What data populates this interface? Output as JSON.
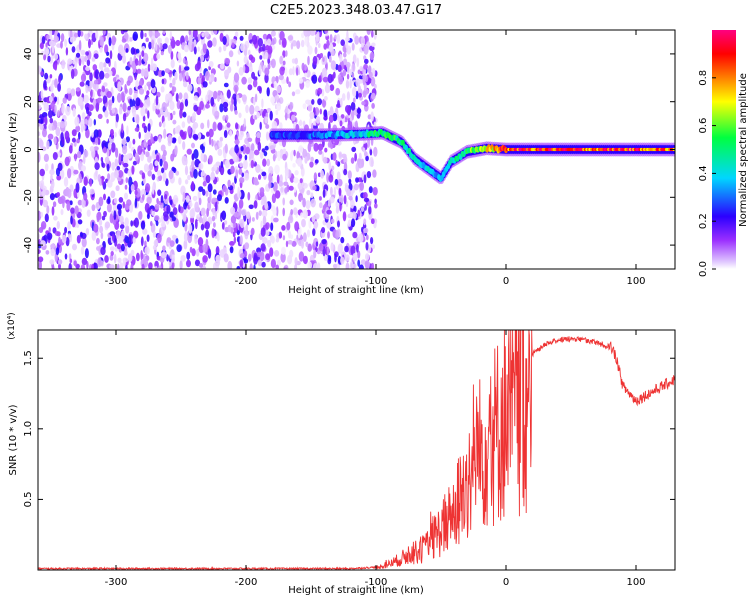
{
  "title": "C2E5.2023.348.03.47.G17",
  "chart_data": [
    {
      "type": "heatmap",
      "title": "C2E5.2023.348.03.47.G17",
      "xlabel": "Height of straight line (km)",
      "ylabel": "Frequency (Hz)",
      "xlim": [
        -360,
        130
      ],
      "ylim": [
        -50,
        50
      ],
      "xticks": [
        -300,
        -200,
        -100,
        0,
        100
      ],
      "yticks": [
        -40,
        -20,
        0,
        20,
        40
      ],
      "colorbar": {
        "label": "Normalized spectral amplitude",
        "range": [
          0,
          1
        ],
        "ticks": [
          "0.0",
          "0.2",
          "0.4",
          "0.6",
          "0.8"
        ],
        "colors": [
          "#ffffff",
          "#9b30ff",
          "#2b00ff",
          "#00d6ff",
          "#00ff40",
          "#ffff00",
          "#ff8000",
          "#ff0000",
          "#ff0080"
        ]
      },
      "noise_region": {
        "x_range": [
          -360,
          -100
        ],
        "freq_range": [
          -50,
          50
        ],
        "amplitude_range": [
          0.0,
          0.2
        ]
      },
      "signal_track": [
        {
          "x": -180,
          "freq": 6.0,
          "amp": 0.25
        },
        {
          "x": -140,
          "freq": 6.0,
          "amp": 0.3
        },
        {
          "x": -110,
          "freq": 6.5,
          "amp": 0.4
        },
        {
          "x": -95,
          "freq": 7.0,
          "amp": 0.55
        },
        {
          "x": -80,
          "freq": 3.0,
          "amp": 0.5
        },
        {
          "x": -70,
          "freq": -4.0,
          "amp": 0.45
        },
        {
          "x": -60,
          "freq": -8.0,
          "amp": 0.4
        },
        {
          "x": -50,
          "freq": -12.0,
          "amp": 0.35
        },
        {
          "x": -42,
          "freq": -5.0,
          "amp": 0.45
        },
        {
          "x": -30,
          "freq": -1.0,
          "amp": 0.55
        },
        {
          "x": -15,
          "freq": 0.5,
          "amp": 0.65
        },
        {
          "x": 0,
          "freq": 0.0,
          "amp": 0.85
        },
        {
          "x": 30,
          "freq": 0.0,
          "amp": 0.9
        },
        {
          "x": 60,
          "freq": 0.0,
          "amp": 0.85
        },
        {
          "x": 90,
          "freq": 0.0,
          "amp": 0.9
        },
        {
          "x": 130,
          "freq": 0.0,
          "amp": 0.8
        }
      ],
      "colors": {
        "accent": "#9b30ff"
      }
    },
    {
      "type": "line",
      "xlabel": "Height of straight line (km)",
      "ylabel": "SNR (10 * v/v)",
      "y_multiplier_label": "(x10⁴)",
      "xlim": [
        -360,
        130
      ],
      "ylim": [
        0,
        1.7
      ],
      "xticks": [
        -300,
        -200,
        -100,
        0,
        100
      ],
      "yticks": [
        "0.5",
        "1.0",
        "1.5"
      ],
      "series": [
        {
          "name": "SNR",
          "color": "#ee3333",
          "x": [
            -360,
            -300,
            -200,
            -120,
            -100,
            -90,
            -80,
            -70,
            -60,
            -50,
            -40,
            -30,
            -20,
            -10,
            0,
            10,
            20,
            30,
            40,
            50,
            60,
            70,
            80,
            85,
            90,
            100,
            110,
            120,
            130
          ],
          "y": [
            0.01,
            0.01,
            0.01,
            0.01,
            0.02,
            0.05,
            0.1,
            0.15,
            0.2,
            0.35,
            0.5,
            0.75,
            1.0,
            1.15,
            1.3,
            1.45,
            1.55,
            1.62,
            1.65,
            1.66,
            1.65,
            1.63,
            1.6,
            1.5,
            1.3,
            1.2,
            1.25,
            1.3,
            1.35
          ]
        }
      ]
    }
  ]
}
